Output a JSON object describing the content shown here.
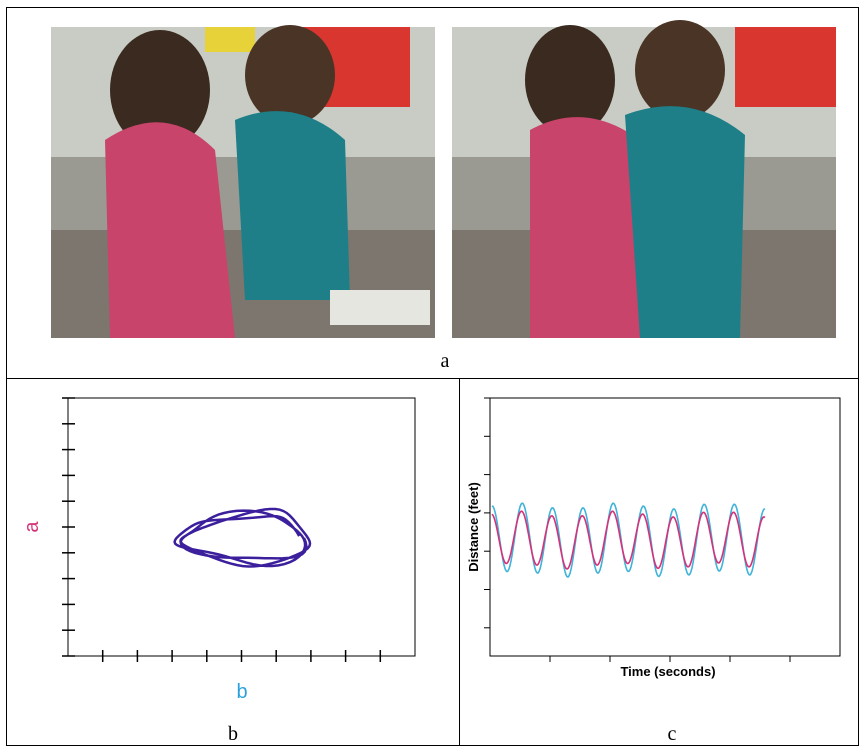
{
  "panels": [
    {
      "label": "a"
    },
    {
      "label": "b",
      "y_axis_label": "a",
      "x_axis_label": "b"
    },
    {
      "label": "c",
      "y_axis_label": "Distance (feet)",
      "x_axis_label": "Time (seconds)"
    }
  ]
}
